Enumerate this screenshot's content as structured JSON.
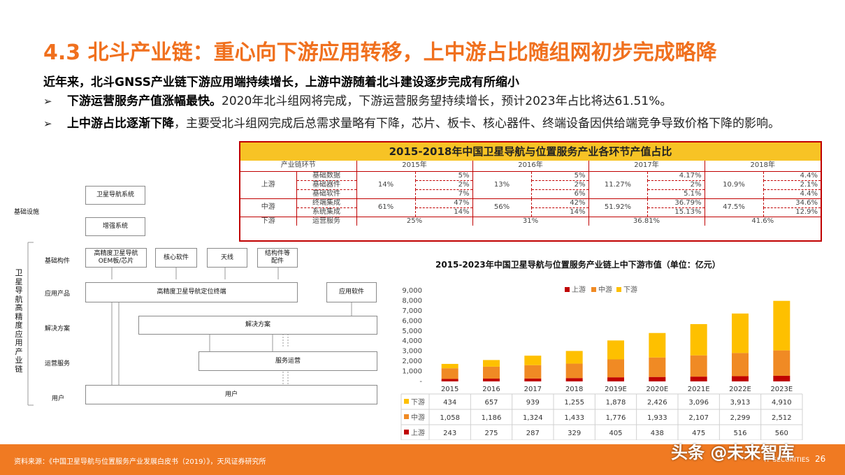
{
  "title": "4.3 北斗产业链：重心向下游应用转移，上中游占比随组网初步完成略降",
  "subhead": "近年来，北斗GNSS产业链下游应用端持续增长，上游中游随着北斗建设逐步完成有所缩小",
  "bullets": [
    {
      "bold": "下游运营服务产值涨幅最快。",
      "text": "2020年北斗组网将完成，下游运营服务望持续增长，预计2023年占比将达61.51%。"
    },
    {
      "bold": "上中游占比逐渐下降",
      "text": "，主要受北斗组网完成后总需求量略有下降，芯片、板卡、核心器件、终端设备因供给端竞争导致价格下降的影响。"
    }
  ],
  "table": {
    "title": "2015-2018年中国卫星导航与位置服务产业各环节产值占比",
    "header": [
      "产业链环节",
      "2015年",
      "2016年",
      "2017年",
      "2018年"
    ],
    "upstream": {
      "label": "上游",
      "items": [
        "基础数据",
        "基础器件",
        "基础软件"
      ],
      "totals": [
        "14%",
        "13%",
        "11.27%",
        "10.9%"
      ],
      "values": [
        [
          "5%",
          "5%",
          "4.17%",
          "4.4%"
        ],
        [
          "2%",
          "2%",
          "2%",
          "2.1%"
        ],
        [
          "7%",
          "6%",
          "5.1%",
          "4.4%"
        ]
      ]
    },
    "midstream": {
      "label": "中游",
      "items": [
        "终端集成",
        "系统集成"
      ],
      "totals": [
        "61%",
        "56%",
        "51.92%",
        "47.5%"
      ],
      "values": [
        [
          "47%",
          "42%",
          "36.79%",
          "34.6%"
        ],
        [
          "14%",
          "14%",
          "15.13%",
          "12.9%"
        ]
      ]
    },
    "downstream": {
      "label": "下游",
      "item": "运营服务",
      "values": [
        "25%",
        "31%",
        "36.81%",
        "41.6%"
      ]
    }
  },
  "diagram": {
    "vertical_label": "卫星导航高精度应用产业链",
    "row_labels": [
      "基础设施",
      "基础构件",
      "应用产品",
      "解决方案",
      "运营服务",
      "用户"
    ],
    "boxes": {
      "sat_nav": "卫星导航系统",
      "augment": "增强系统",
      "oem": "高精度卫星导航OEM板/芯片",
      "core_sw": "核心软件",
      "antenna": "天线",
      "struct": "结构件等配件",
      "terminal": "高精度卫星导航定位终端",
      "app_sw": "应用软件",
      "solution": "解决方案",
      "service": "服务运营",
      "user": "用户"
    }
  },
  "chart_data": {
    "type": "bar",
    "stacked": true,
    "title": "2015-2023年中国卫星导航与位置服务产业链上中下游市值（单位：亿元）",
    "categories": [
      "2015",
      "2016",
      "2017",
      "2018",
      "2019E",
      "2020E",
      "2021E",
      "2022E",
      "2023E"
    ],
    "series": [
      {
        "name": "上游",
        "color": "#c00000",
        "values": [
          243,
          275,
          287,
          329,
          405,
          438,
          475,
          516,
          560
        ]
      },
      {
        "name": "中游",
        "color": "#f08a24",
        "values": [
          1058,
          1186,
          1324,
          1433,
          1776,
          1933,
          2107,
          2299,
          2512
        ]
      },
      {
        "name": "下游",
        "color": "#fec000",
        "values": [
          434,
          657,
          939,
          1255,
          1878,
          2426,
          3096,
          3913,
          4910
        ]
      }
    ],
    "ylim": [
      0,
      9000
    ],
    "yticks": [
      "9,000",
      "8,000",
      "7,000",
      "6,000",
      "5,000",
      "4,000",
      "3,000",
      "2,000",
      "1,000",
      "-"
    ],
    "grid": false,
    "legend": "top-left",
    "table_rows": [
      {
        "name": "下游",
        "values": [
          "434",
          "657",
          "939",
          "1,255",
          "1,878",
          "2,426",
          "3,096",
          "3,913",
          "4,910"
        ]
      },
      {
        "name": "中游",
        "values": [
          "1,058",
          "1,186",
          "1,324",
          "1,433",
          "1,776",
          "1,933",
          "2,107",
          "2,299",
          "2,512"
        ]
      },
      {
        "name": "上游",
        "values": [
          "243",
          "275",
          "287",
          "329",
          "405",
          "438",
          "475",
          "516",
          "560"
        ]
      }
    ]
  },
  "footer": {
    "source": "资料来源：《中国卫星导航与位置服务产业发展白皮书（2019）》，天风证券研究所",
    "brand": "TF SECURITIES",
    "page": "26"
  },
  "watermark": "头条 @未来智库"
}
